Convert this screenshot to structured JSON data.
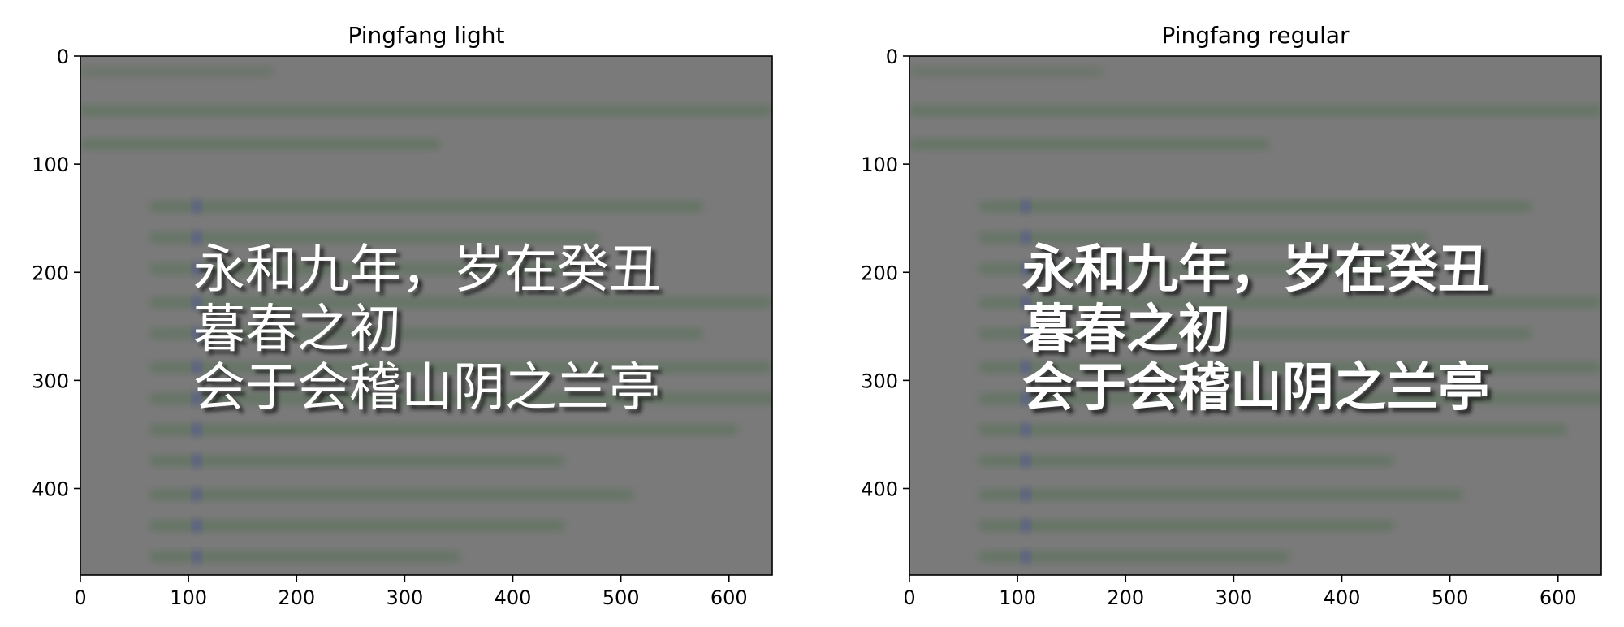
{
  "chart_data": [
    {
      "type": "image",
      "title": "Pingfang light",
      "xlim": [
        0,
        640
      ],
      "ylim": [
        480,
        0
      ],
      "xticks": [
        0,
        100,
        200,
        300,
        400,
        500,
        600
      ],
      "yticks": [
        0,
        100,
        200,
        300,
        400
      ],
      "grid": false,
      "overlay_text": [
        "永和九年，岁在癸丑",
        "暮春之初",
        "会于会稽山阴之兰亭"
      ],
      "overlay_color": "#ffffff",
      "shadow_color": "#202020",
      "background_color": "#7a7a7a"
    },
    {
      "type": "image",
      "title": "Pingfang regular",
      "xlim": [
        0,
        640
      ],
      "ylim": [
        480,
        0
      ],
      "xticks": [
        0,
        100,
        200,
        300,
        400,
        500,
        600
      ],
      "yticks": [
        0,
        100,
        200,
        300,
        400
      ],
      "grid": false,
      "overlay_text": [
        "永和九年，岁在癸丑",
        "暮春之初",
        "会于会稽山阴之兰亭"
      ],
      "overlay_color": "#ffffff",
      "shadow_color": "#202020",
      "background_color": "#7a7a7a"
    }
  ]
}
